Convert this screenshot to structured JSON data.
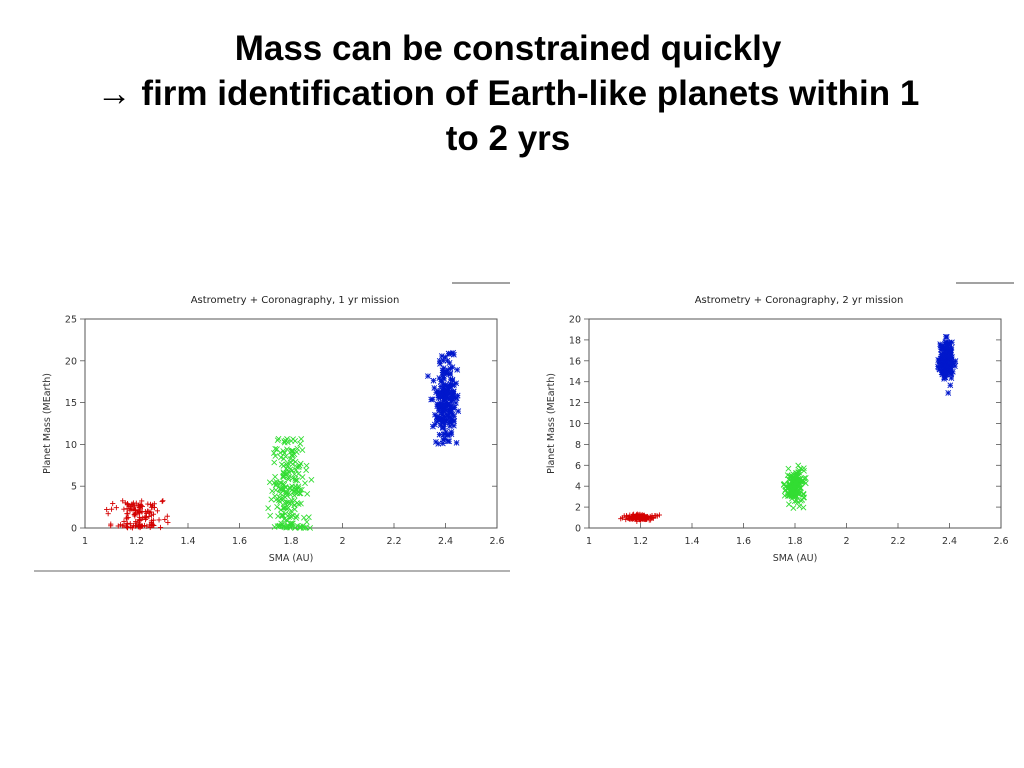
{
  "slide": {
    "title_lines": [
      "Mass can be constrained quickly",
      "→ firm identification of Earth-like planets within 1",
      "to 2 yrs"
    ]
  },
  "colors": {
    "red": "#d40000",
    "green": "#33dd33",
    "blue": "#0018cc"
  },
  "chart_data": [
    {
      "type": "scatter",
      "title": "Astrometry + Coronagraphy, 1 yr mission",
      "xlabel": "SMA (AU)",
      "ylabel": "Planet Mass (MEarth)",
      "xlim": [
        1,
        2.6
      ],
      "ylim": [
        0,
        25
      ],
      "xticks": [
        1,
        1.2,
        1.4,
        1.6,
        1.8,
        2,
        2.2,
        2.4,
        2.6
      ],
      "yticks": [
        0,
        5,
        10,
        15,
        20,
        25
      ],
      "grid": false,
      "series": [
        {
          "marker": "+",
          "color": "#d40000",
          "x_center": 1.2,
          "x_spread": 0.05,
          "x_max": 1.4,
          "y_center": 1.5,
          "y_spread": 1.2,
          "y_min": 0,
          "y_max": 3.3,
          "n": 130
        },
        {
          "marker": "x",
          "color": "#33dd33",
          "x_center": 1.79,
          "x_spread": 0.03,
          "y_center": 4.5,
          "y_spread": 3.5,
          "y_min": 0,
          "y_max": 10.7,
          "n": 200
        },
        {
          "marker": "*",
          "color": "#0018cc",
          "x_center": 2.4,
          "x_spread": 0.025,
          "y_center": 15.5,
          "y_spread": 2.5,
          "y_min": 10,
          "y_max": 21,
          "n": 200
        }
      ]
    },
    {
      "type": "scatter",
      "title": "Astrometry + Coronagraphy, 2 yr mission",
      "xlabel": "SMA (AU)",
      "ylabel": "Planet Mass (MEarth)",
      "xlim": [
        1,
        2.6
      ],
      "ylim": [
        0,
        20
      ],
      "xticks": [
        1,
        1.2,
        1.4,
        1.6,
        1.8,
        2,
        2.2,
        2.4,
        2.6
      ],
      "yticks": [
        0,
        2,
        4,
        6,
        8,
        10,
        12,
        14,
        16,
        18,
        20
      ],
      "grid": false,
      "series": [
        {
          "marker": "+",
          "color": "#d40000",
          "x_center": 1.2,
          "x_spread": 0.025,
          "y_center": 1.0,
          "y_spread": 0.15,
          "y_min": 0.6,
          "y_max": 1.4,
          "n": 150
        },
        {
          "marker": "x",
          "color": "#33dd33",
          "x_center": 1.8,
          "x_spread": 0.018,
          "y_center": 4.0,
          "y_spread": 0.8,
          "y_min": 1.8,
          "y_max": 6.0,
          "n": 170
        },
        {
          "marker": "*",
          "color": "#0018cc",
          "x_center": 2.39,
          "x_spread": 0.015,
          "y_center": 16.0,
          "y_spread": 1.0,
          "y_min": 12.8,
          "y_max": 18.7,
          "n": 170
        }
      ]
    }
  ]
}
